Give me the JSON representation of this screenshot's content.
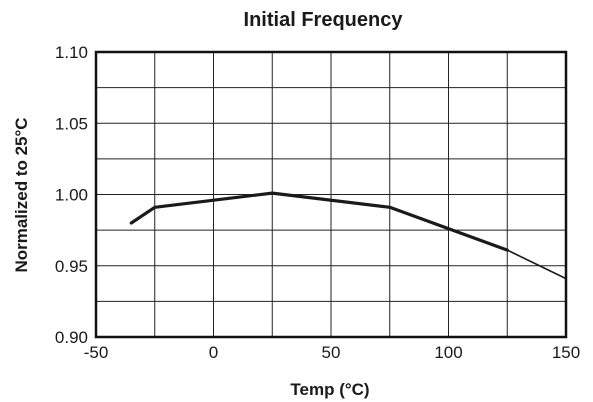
{
  "chart_data": {
    "type": "line",
    "title": "Initial Frequency",
    "xlabel": "Temp (°C)",
    "ylabel": "Normalized to 25°C",
    "xlim": [
      -50,
      150
    ],
    "ylim": [
      0.9,
      1.1
    ],
    "xticks": [
      -50,
      0,
      50,
      100,
      150
    ],
    "xtick_labels": [
      "-50",
      "0",
      "50",
      "100",
      "150"
    ],
    "yticks": [
      0.9,
      0.95,
      1.0,
      1.05,
      1.1
    ],
    "ytick_labels": [
      "0.90",
      "0.95",
      "1.00",
      "1.05",
      "1.10"
    ],
    "grid": true,
    "series": [
      {
        "color": "#1a1a1a",
        "segments": [
          {
            "stroke": "thick",
            "points": [
              [
                -35,
                0.98
              ],
              [
                -25,
                0.991
              ],
              [
                25,
                1.001
              ],
              [
                75,
                0.991
              ],
              [
                125,
                0.961
              ]
            ]
          },
          {
            "stroke": "thin",
            "points": [
              [
                125,
                0.961
              ],
              [
                150,
                0.941
              ]
            ]
          }
        ]
      }
    ]
  }
}
